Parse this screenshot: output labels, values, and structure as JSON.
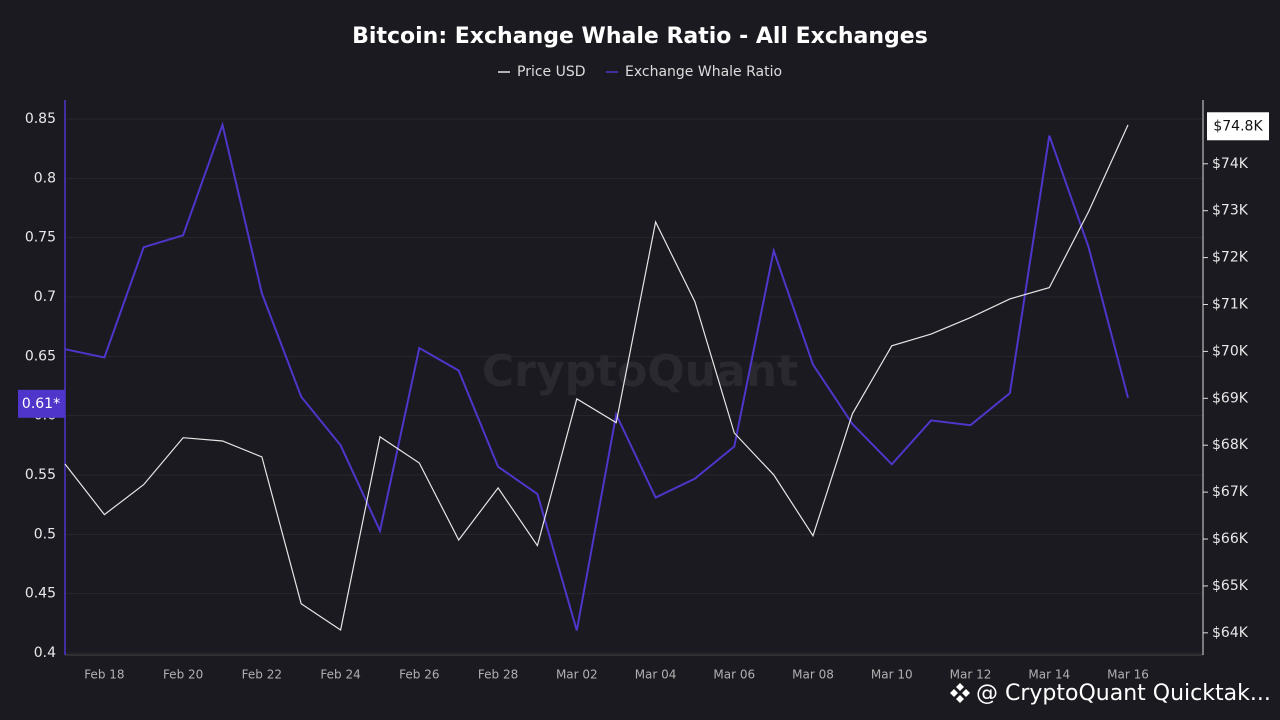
{
  "chart_data": {
    "type": "line",
    "title": "Bitcoin: Exchange Whale Ratio - All Exchanges",
    "watermark": "CryptoQuant",
    "footer": "@ CryptoQuant Quicktak...",
    "categories": [
      null,
      "Feb 18",
      null,
      "Feb 20",
      null,
      "Feb 22",
      null,
      "Feb 24",
      null,
      "Feb 26",
      null,
      "Feb 28",
      null,
      "Mar 02",
      null,
      "Mar 04",
      null,
      "Mar 06",
      null,
      "Mar 08",
      null,
      "Mar 10",
      null,
      "Mar 12",
      null,
      "Mar 14",
      null,
      "Mar 16"
    ],
    "series": [
      {
        "name": "Price USD",
        "color": "#e6e6e6",
        "axis": "y2",
        "values": [
          67600,
          66520,
          67160,
          68160,
          68090,
          67750,
          64620,
          64060,
          68180,
          67620,
          65980,
          67090,
          65860,
          68990,
          68480,
          72760,
          71060,
          68260,
          67370,
          66070,
          68670,
          70120,
          70370,
          70720,
          71120,
          71360,
          72980,
          74830
        ]
      },
      {
        "name": "Exchange Whale Ratio",
        "color": "#4f35c9",
        "axis": "y",
        "values": [
          0.656,
          0.649,
          0.742,
          0.752,
          0.845,
          0.703,
          0.616,
          0.575,
          0.503,
          0.657,
          0.638,
          0.557,
          0.534,
          0.419,
          0.601,
          0.531,
          0.547,
          0.574,
          0.739,
          0.643,
          0.593,
          0.559,
          0.596,
          0.592,
          0.619,
          0.836,
          0.742,
          0.615
        ]
      }
    ],
    "ylim": [
      0.4,
      0.866
    ],
    "yticks": [
      0.4,
      0.45,
      0.5,
      0.55,
      0.6,
      0.65,
      0.7,
      0.75,
      0.8,
      0.85
    ],
    "y2lim": [
      63570,
      75360
    ],
    "y2ticks": [
      {
        "value": 64000,
        "label": "$64K"
      },
      {
        "value": 65000,
        "label": "$65K"
      },
      {
        "value": 66000,
        "label": "$66K"
      },
      {
        "value": 67000,
        "label": "$67K"
      },
      {
        "value": 68000,
        "label": "$68K"
      },
      {
        "value": 69000,
        "label": "$69K"
      },
      {
        "value": 70000,
        "label": "$70K"
      },
      {
        "value": 71000,
        "label": "$71K"
      },
      {
        "value": 72000,
        "label": "$72K"
      },
      {
        "value": 73000,
        "label": "$73K"
      },
      {
        "value": 74000,
        "label": "$74K"
      }
    ],
    "annotations": [
      {
        "label": "0.61*",
        "value": 0.61,
        "axis": "y"
      },
      {
        "label": "$74.8K",
        "value": 74800,
        "axis": "y2"
      }
    ],
    "grid": true,
    "legend": "top"
  }
}
